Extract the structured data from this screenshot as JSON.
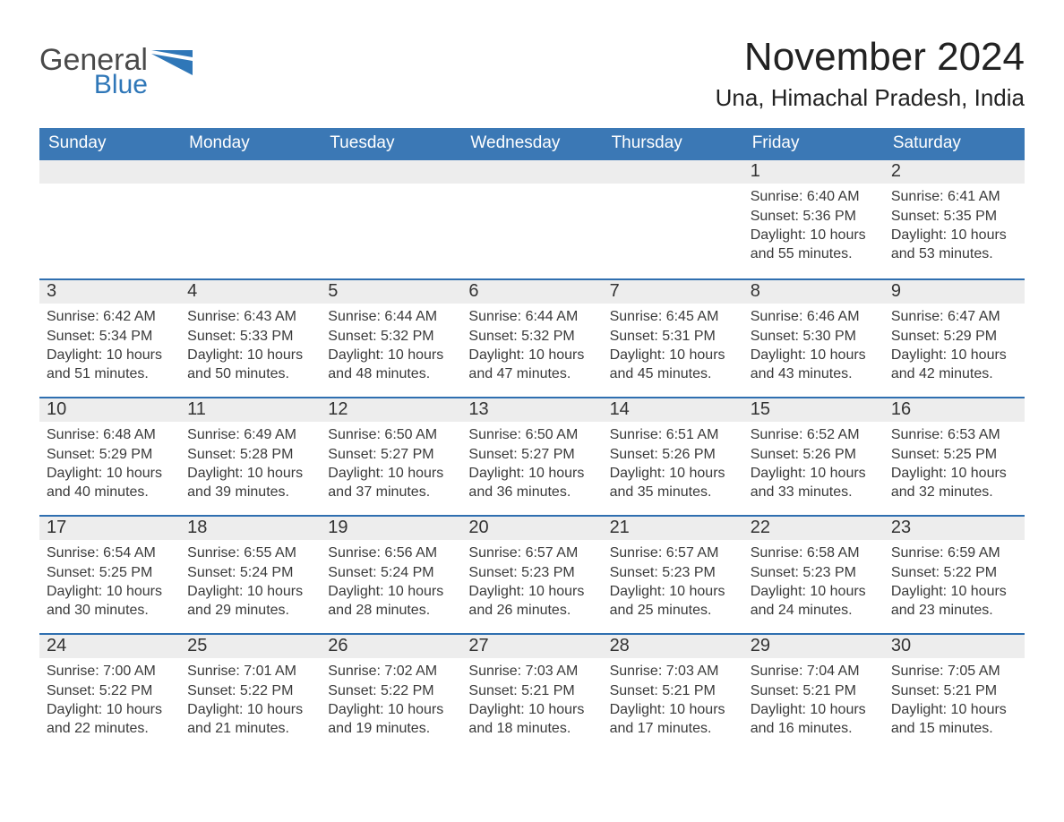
{
  "logo": {
    "text1": "General",
    "text2": "Blue"
  },
  "header": {
    "month_title": "November 2024",
    "location": "Una, Himachal Pradesh, India"
  },
  "colors": {
    "blue_header": "#3b78b5",
    "blue_line": "#2f6fb0",
    "light_gray": "#ededed",
    "logo_dark": "#4a4a4a",
    "logo_blue": "#2f77b8",
    "background": "#ffffff"
  },
  "day_names": [
    "Sunday",
    "Monday",
    "Tuesday",
    "Wednesday",
    "Thursday",
    "Friday",
    "Saturday"
  ],
  "weeks": [
    [
      null,
      null,
      null,
      null,
      null,
      {
        "n": "1",
        "sr": "Sunrise: 6:40 AM",
        "ss": "Sunset: 5:36 PM",
        "dl": "Daylight: 10 hours and 55 minutes."
      },
      {
        "n": "2",
        "sr": "Sunrise: 6:41 AM",
        "ss": "Sunset: 5:35 PM",
        "dl": "Daylight: 10 hours and 53 minutes."
      }
    ],
    [
      {
        "n": "3",
        "sr": "Sunrise: 6:42 AM",
        "ss": "Sunset: 5:34 PM",
        "dl": "Daylight: 10 hours and 51 minutes."
      },
      {
        "n": "4",
        "sr": "Sunrise: 6:43 AM",
        "ss": "Sunset: 5:33 PM",
        "dl": "Daylight: 10 hours and 50 minutes."
      },
      {
        "n": "5",
        "sr": "Sunrise: 6:44 AM",
        "ss": "Sunset: 5:32 PM",
        "dl": "Daylight: 10 hours and 48 minutes."
      },
      {
        "n": "6",
        "sr": "Sunrise: 6:44 AM",
        "ss": "Sunset: 5:32 PM",
        "dl": "Daylight: 10 hours and 47 minutes."
      },
      {
        "n": "7",
        "sr": "Sunrise: 6:45 AM",
        "ss": "Sunset: 5:31 PM",
        "dl": "Daylight: 10 hours and 45 minutes."
      },
      {
        "n": "8",
        "sr": "Sunrise: 6:46 AM",
        "ss": "Sunset: 5:30 PM",
        "dl": "Daylight: 10 hours and 43 minutes."
      },
      {
        "n": "9",
        "sr": "Sunrise: 6:47 AM",
        "ss": "Sunset: 5:29 PM",
        "dl": "Daylight: 10 hours and 42 minutes."
      }
    ],
    [
      {
        "n": "10",
        "sr": "Sunrise: 6:48 AM",
        "ss": "Sunset: 5:29 PM",
        "dl": "Daylight: 10 hours and 40 minutes."
      },
      {
        "n": "11",
        "sr": "Sunrise: 6:49 AM",
        "ss": "Sunset: 5:28 PM",
        "dl": "Daylight: 10 hours and 39 minutes."
      },
      {
        "n": "12",
        "sr": "Sunrise: 6:50 AM",
        "ss": "Sunset: 5:27 PM",
        "dl": "Daylight: 10 hours and 37 minutes."
      },
      {
        "n": "13",
        "sr": "Sunrise: 6:50 AM",
        "ss": "Sunset: 5:27 PM",
        "dl": "Daylight: 10 hours and 36 minutes."
      },
      {
        "n": "14",
        "sr": "Sunrise: 6:51 AM",
        "ss": "Sunset: 5:26 PM",
        "dl": "Daylight: 10 hours and 35 minutes."
      },
      {
        "n": "15",
        "sr": "Sunrise: 6:52 AM",
        "ss": "Sunset: 5:26 PM",
        "dl": "Daylight: 10 hours and 33 minutes."
      },
      {
        "n": "16",
        "sr": "Sunrise: 6:53 AM",
        "ss": "Sunset: 5:25 PM",
        "dl": "Daylight: 10 hours and 32 minutes."
      }
    ],
    [
      {
        "n": "17",
        "sr": "Sunrise: 6:54 AM",
        "ss": "Sunset: 5:25 PM",
        "dl": "Daylight: 10 hours and 30 minutes."
      },
      {
        "n": "18",
        "sr": "Sunrise: 6:55 AM",
        "ss": "Sunset: 5:24 PM",
        "dl": "Daylight: 10 hours and 29 minutes."
      },
      {
        "n": "19",
        "sr": "Sunrise: 6:56 AM",
        "ss": "Sunset: 5:24 PM",
        "dl": "Daylight: 10 hours and 28 minutes."
      },
      {
        "n": "20",
        "sr": "Sunrise: 6:57 AM",
        "ss": "Sunset: 5:23 PM",
        "dl": "Daylight: 10 hours and 26 minutes."
      },
      {
        "n": "21",
        "sr": "Sunrise: 6:57 AM",
        "ss": "Sunset: 5:23 PM",
        "dl": "Daylight: 10 hours and 25 minutes."
      },
      {
        "n": "22",
        "sr": "Sunrise: 6:58 AM",
        "ss": "Sunset: 5:23 PM",
        "dl": "Daylight: 10 hours and 24 minutes."
      },
      {
        "n": "23",
        "sr": "Sunrise: 6:59 AM",
        "ss": "Sunset: 5:22 PM",
        "dl": "Daylight: 10 hours and 23 minutes."
      }
    ],
    [
      {
        "n": "24",
        "sr": "Sunrise: 7:00 AM",
        "ss": "Sunset: 5:22 PM",
        "dl": "Daylight: 10 hours and 22 minutes."
      },
      {
        "n": "25",
        "sr": "Sunrise: 7:01 AM",
        "ss": "Sunset: 5:22 PM",
        "dl": "Daylight: 10 hours and 21 minutes."
      },
      {
        "n": "26",
        "sr": "Sunrise: 7:02 AM",
        "ss": "Sunset: 5:22 PM",
        "dl": "Daylight: 10 hours and 19 minutes."
      },
      {
        "n": "27",
        "sr": "Sunrise: 7:03 AM",
        "ss": "Sunset: 5:21 PM",
        "dl": "Daylight: 10 hours and 18 minutes."
      },
      {
        "n": "28",
        "sr": "Sunrise: 7:03 AM",
        "ss": "Sunset: 5:21 PM",
        "dl": "Daylight: 10 hours and 17 minutes."
      },
      {
        "n": "29",
        "sr": "Sunrise: 7:04 AM",
        "ss": "Sunset: 5:21 PM",
        "dl": "Daylight: 10 hours and 16 minutes."
      },
      {
        "n": "30",
        "sr": "Sunrise: 7:05 AM",
        "ss": "Sunset: 5:21 PM",
        "dl": "Daylight: 10 hours and 15 minutes."
      }
    ]
  ]
}
